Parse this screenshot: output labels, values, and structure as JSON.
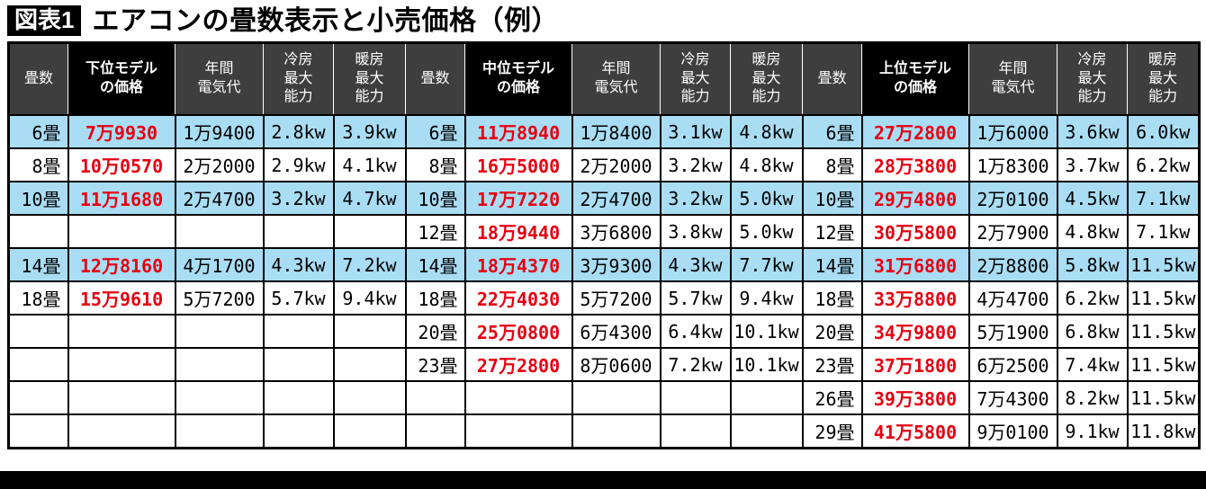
{
  "figure_badge": "図表1",
  "colors": {
    "row_highlight": "#a9ddf4",
    "price_red": "#e60012",
    "header_gray": "#3e3e3e",
    "header_black": "#000000"
  },
  "chart_data": {
    "type": "table",
    "title": "エアコンの畳数表示と小売価格（例）",
    "column_groups": [
      "下位モデル",
      "中位モデル",
      "上位モデル"
    ],
    "column_headers": [
      {
        "label": "畳数",
        "emphasis": false
      },
      {
        "label": "下位モデル\nの価格",
        "emphasis": true
      },
      {
        "label": "年間\n電気代",
        "emphasis": false
      },
      {
        "label": "冷房\n最大\n能力",
        "emphasis": false
      },
      {
        "label": "暖房\n最大\n能力",
        "emphasis": false
      },
      {
        "label": "畳数",
        "emphasis": false
      },
      {
        "label": "中位モデル\nの価格",
        "emphasis": true
      },
      {
        "label": "年間\n電気代",
        "emphasis": false
      },
      {
        "label": "冷房\n最大\n能力",
        "emphasis": false
      },
      {
        "label": "暖房\n最大\n能力",
        "emphasis": false
      },
      {
        "label": "畳数",
        "emphasis": false
      },
      {
        "label": "上位モデル\nの価格",
        "emphasis": true
      },
      {
        "label": "年間\n電気代",
        "emphasis": false
      },
      {
        "label": "冷房\n最大\n能力",
        "emphasis": false
      },
      {
        "label": "暖房\n最大\n能力",
        "emphasis": false
      }
    ],
    "rows": [
      {
        "highlight": true,
        "cells": [
          "6畳",
          "7万9930",
          "1万9400",
          "2.8kw",
          "3.9kw",
          "6畳",
          "11万8940",
          "1万8400",
          "3.1kw",
          "4.8kw",
          "6畳",
          "27万2800",
          "1万6000",
          "3.6kw",
          "6.0kw"
        ]
      },
      {
        "highlight": false,
        "cells": [
          "8畳",
          "10万0570",
          "2万2000",
          "2.9kw",
          "4.1kw",
          "8畳",
          "16万5000",
          "2万2000",
          "3.2kw",
          "4.8kw",
          "8畳",
          "28万3800",
          "1万8300",
          "3.7kw",
          "6.2kw"
        ]
      },
      {
        "highlight": true,
        "cells": [
          "10畳",
          "11万1680",
          "2万4700",
          "3.2kw",
          "4.7kw",
          "10畳",
          "17万7220",
          "2万4700",
          "3.2kw",
          "5.0kw",
          "10畳",
          "29万4800",
          "2万0100",
          "4.5kw",
          "7.1kw"
        ]
      },
      {
        "highlight": false,
        "cells": [
          "",
          "",
          "",
          "",
          "",
          "12畳",
          "18万9440",
          "3万6800",
          "3.8kw",
          "5.0kw",
          "12畳",
          "30万5800",
          "2万7900",
          "4.8kw",
          "7.1kw"
        ]
      },
      {
        "highlight": true,
        "cells": [
          "14畳",
          "12万8160",
          "4万1700",
          "4.3kw",
          "7.2kw",
          "14畳",
          "18万4370",
          "3万9300",
          "4.3kw",
          "7.7kw",
          "14畳",
          "31万6800",
          "2万8800",
          "5.8kw",
          "11.5kw"
        ]
      },
      {
        "highlight": false,
        "cells": [
          "18畳",
          "15万9610",
          "5万7200",
          "5.7kw",
          "9.4kw",
          "18畳",
          "22万4030",
          "5万7200",
          "5.7kw",
          "9.4kw",
          "18畳",
          "33万8800",
          "4万4700",
          "6.2kw",
          "11.5kw"
        ]
      },
      {
        "highlight": false,
        "cells": [
          "",
          "",
          "",
          "",
          "",
          "20畳",
          "25万0800",
          "6万4300",
          "6.4kw",
          "10.1kw",
          "20畳",
          "34万9800",
          "5万1900",
          "6.8kw",
          "11.5kw"
        ]
      },
      {
        "highlight": false,
        "cells": [
          "",
          "",
          "",
          "",
          "",
          "23畳",
          "27万2800",
          "8万0600",
          "7.2kw",
          "10.1kw",
          "23畳",
          "37万1800",
          "6万2500",
          "7.4kw",
          "11.5kw"
        ]
      },
      {
        "highlight": false,
        "cells": [
          "",
          "",
          "",
          "",
          "",
          "",
          "",
          "",
          "",
          "",
          "26畳",
          "39万3800",
          "7万4300",
          "8.2kw",
          "11.5kw"
        ]
      },
      {
        "highlight": false,
        "cells": [
          "",
          "",
          "",
          "",
          "",
          "",
          "",
          "",
          "",
          "",
          "29畳",
          "41万5800",
          "9万0100",
          "9.1kw",
          "11.8kw"
        ]
      }
    ]
  }
}
